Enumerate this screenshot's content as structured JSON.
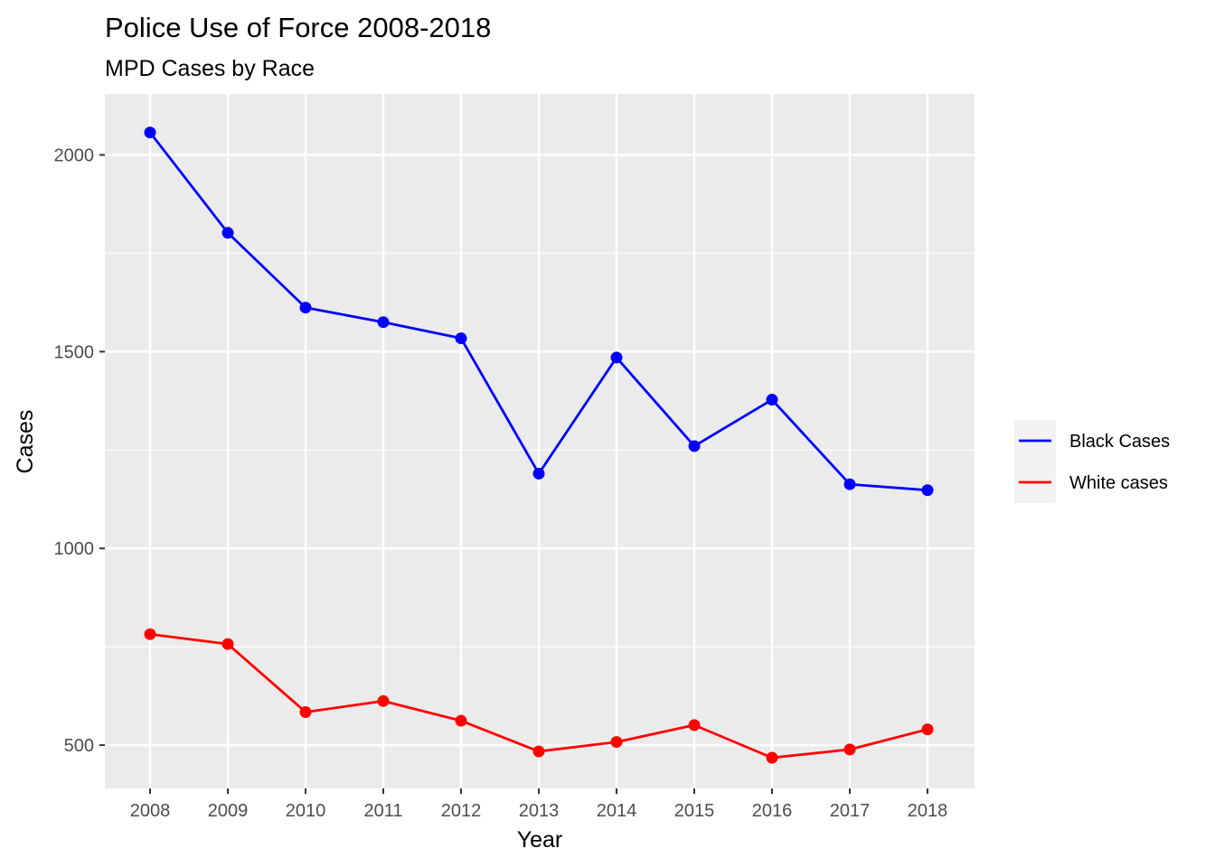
{
  "chart_data": {
    "type": "line",
    "title": "Police Use of Force 2008-2018",
    "subtitle": "MPD Cases by Race",
    "xlabel": "Year",
    "ylabel": "Cases",
    "x": [
      2008,
      2009,
      2010,
      2011,
      2012,
      2013,
      2014,
      2015,
      2016,
      2017,
      2018
    ],
    "x_tick_labels": [
      "2008",
      "2009",
      "2010",
      "2011",
      "2012",
      "2013",
      "2014",
      "2015",
      "2016",
      "2017",
      "2018"
    ],
    "y_ticks": [
      500,
      1000,
      1500,
      2000
    ],
    "y_tick_labels": [
      "500",
      "1000",
      "1500",
      "2000"
    ],
    "ylim": [
      390,
      2155
    ],
    "grid": true,
    "legend_position": "right",
    "series": [
      {
        "name": "Black Cases",
        "color": "#0000ff",
        "values": [
          2057,
          1802,
          1612,
          1575,
          1534,
          1190,
          1485,
          1260,
          1378,
          1163,
          1148
        ]
      },
      {
        "name": "White cases",
        "color": "#ff0000",
        "values": [
          782,
          757,
          584,
          612,
          562,
          484,
          508,
          551,
          468,
          489,
          540
        ]
      }
    ],
    "colors": {
      "panel": "#ebebeb",
      "grid": "#ffffff",
      "legend_key": "#f2f2f2"
    }
  }
}
